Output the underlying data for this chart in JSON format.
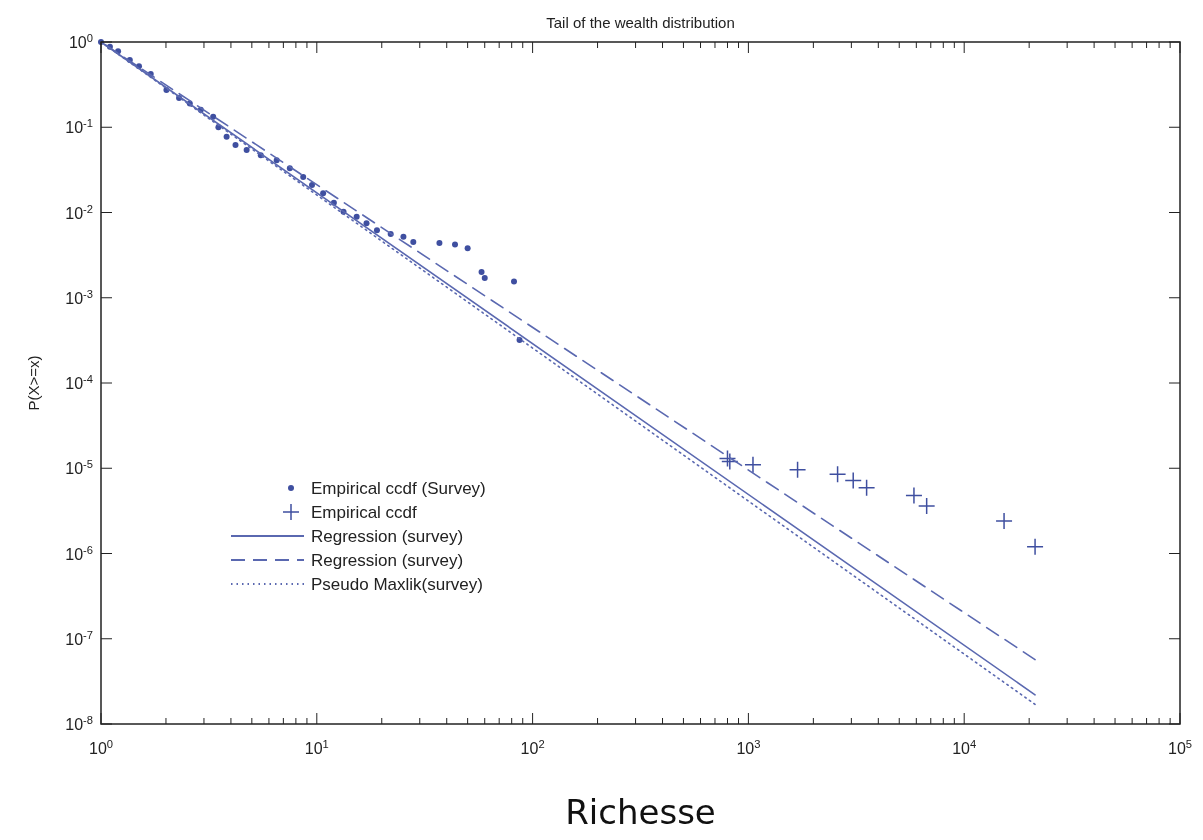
{
  "chart_data": {
    "type": "scatter",
    "title": "Tail of the wealth distribution",
    "xlabel": "Richesse",
    "ylabel": "P(X>=x)",
    "log": "xy",
    "legend": "bottom left",
    "xlim": [
      1,
      100000
    ],
    "ylim": [
      1e-08,
      1
    ],
    "xticks": [
      {
        "value": 1,
        "label": "10$^{0}$"
      },
      {
        "value": 2,
        "label": null
      },
      {
        "value": 3,
        "label": null
      },
      {
        "value": 4,
        "label": null
      },
      {
        "value": 5,
        "label": null
      },
      {
        "value": 6,
        "label": null
      },
      {
        "value": 7,
        "label": null
      },
      {
        "value": 8,
        "label": null
      },
      {
        "value": 9,
        "label": null
      },
      {
        "value": 10,
        "label": "10$^{1}$"
      },
      {
        "value": 20,
        "label": null
      },
      {
        "value": 30,
        "label": null
      },
      {
        "value": 40,
        "label": null
      },
      {
        "value": 50,
        "label": null
      },
      {
        "value": 60,
        "label": null
      },
      {
        "value": 70,
        "label": null
      },
      {
        "value": 80,
        "label": null
      },
      {
        "value": 90,
        "label": null
      },
      {
        "value": 100,
        "label": "10$^{2}$"
      },
      {
        "value": 200,
        "label": null
      },
      {
        "value": 300,
        "label": null
      },
      {
        "value": 400,
        "label": null
      },
      {
        "value": 500,
        "label": null
      },
      {
        "value": 600,
        "label": null
      },
      {
        "value": 700,
        "label": null
      },
      {
        "value": 800,
        "label": null
      },
      {
        "value": 900,
        "label": null
      },
      {
        "value": 1000,
        "label": "10$^{3}$"
      },
      {
        "value": 2000,
        "label": null
      },
      {
        "value": 3000,
        "label": null
      },
      {
        "value": 4000,
        "label": null
      },
      {
        "value": 5000,
        "label": null
      },
      {
        "value": 6000,
        "label": null
      },
      {
        "value": 7000,
        "label": null
      },
      {
        "value": 8000,
        "label": null
      },
      {
        "value": 9000,
        "label": null
      },
      {
        "value": 10000,
        "label": "10$^{4}$"
      },
      {
        "value": 20000,
        "label": null
      },
      {
        "value": 30000,
        "label": null
      },
      {
        "value": 40000,
        "label": null
      },
      {
        "value": 50000,
        "label": null
      },
      {
        "value": 60000,
        "label": null
      },
      {
        "value": 70000,
        "label": null
      },
      {
        "value": 80000,
        "label": null
      },
      {
        "value": 90000,
        "label": null
      },
      {
        "value": 100000,
        "label": "10$^{5}$"
      }
    ],
    "yticks": [
      {
        "value": 1e-08,
        "label": "10$^{-8}$"
      },
      {
        "value": 1e-07,
        "label": "10$^{-7}$"
      },
      {
        "value": 1e-06,
        "label": "10$^{-6}$"
      },
      {
        "value": 1e-05,
        "label": "10$^{-5}$"
      },
      {
        "value": 0.0001,
        "label": "10$^{-4}$"
      },
      {
        "value": 0.001,
        "label": "10$^{-3}$"
      },
      {
        "value": 0.01,
        "label": "10$^{-2}$"
      },
      {
        "value": 0.1,
        "label": "10$^{-1}$"
      },
      {
        "value": 1,
        "label": "10$^{0}$"
      }
    ],
    "series": [
      {
        "name": "Empirical ccdf (Survey)",
        "marker": "circle",
        "color": "#3f4fa0",
        "x": [
          1.0,
          1.1,
          1.2,
          1.36,
          1.5,
          1.7,
          2.01,
          2.3,
          2.58,
          2.9,
          3.31,
          3.5,
          3.82,
          4.2,
          4.73,
          5.5,
          6.52,
          7.5,
          8.65,
          9.5,
          10.7,
          12,
          13.3,
          15.3,
          17,
          19,
          22,
          25.2,
          28,
          37,
          43.7,
          50,
          58,
          60,
          82,
          87
        ],
        "values": [
          1.0,
          0.88,
          0.78,
          0.615,
          0.52,
          0.42,
          0.273,
          0.22,
          0.19,
          0.16,
          0.133,
          0.1,
          0.0774,
          0.062,
          0.054,
          0.047,
          0.041,
          0.033,
          0.026,
          0.021,
          0.0168,
          0.013,
          0.0102,
          0.0089,
          0.0075,
          0.0062,
          0.0056,
          0.0052,
          0.0045,
          0.0044,
          0.0042,
          0.0038,
          0.002,
          0.0017,
          0.00155,
          0.00032
        ]
      },
      {
        "name": "Empirical ccdf",
        "marker": "cross",
        "color": "#3f4fa0",
        "x": [
          800,
          820,
          1050,
          1690,
          2590,
          3060,
          3530,
          5850,
          6700,
          15300,
          21300
        ],
        "values": [
          1.3e-05,
          1.2e-05,
          1.1e-05,
          9.6e-06,
          8.5e-06,
          7.2e-06,
          5.9e-06,
          4.8e-06,
          3.6e-06,
          2.4e-06,
          1.2e-06
        ]
      },
      {
        "name": "Regression (survey)",
        "type": "line",
        "marker": "none",
        "line_style": "solid",
        "color": "#5a68b0",
        "x": [
          1,
          21300
        ],
        "values": [
          1,
          2.2e-08
        ]
      },
      {
        "name": "Regression (survey)",
        "type": "line",
        "marker": "none",
        "line_style": "dashed",
        "color": "#5a68b0",
        "x": [
          1,
          21300
        ],
        "values": [
          1,
          5.7e-08
        ]
      },
      {
        "name": "Pseudo Maxlik(survey)",
        "type": "line",
        "marker": "none",
        "line_style": "dotted",
        "color": "#5a68b0",
        "x": [
          1,
          21300
        ],
        "values": [
          1,
          1.7e-08
        ]
      }
    ]
  }
}
